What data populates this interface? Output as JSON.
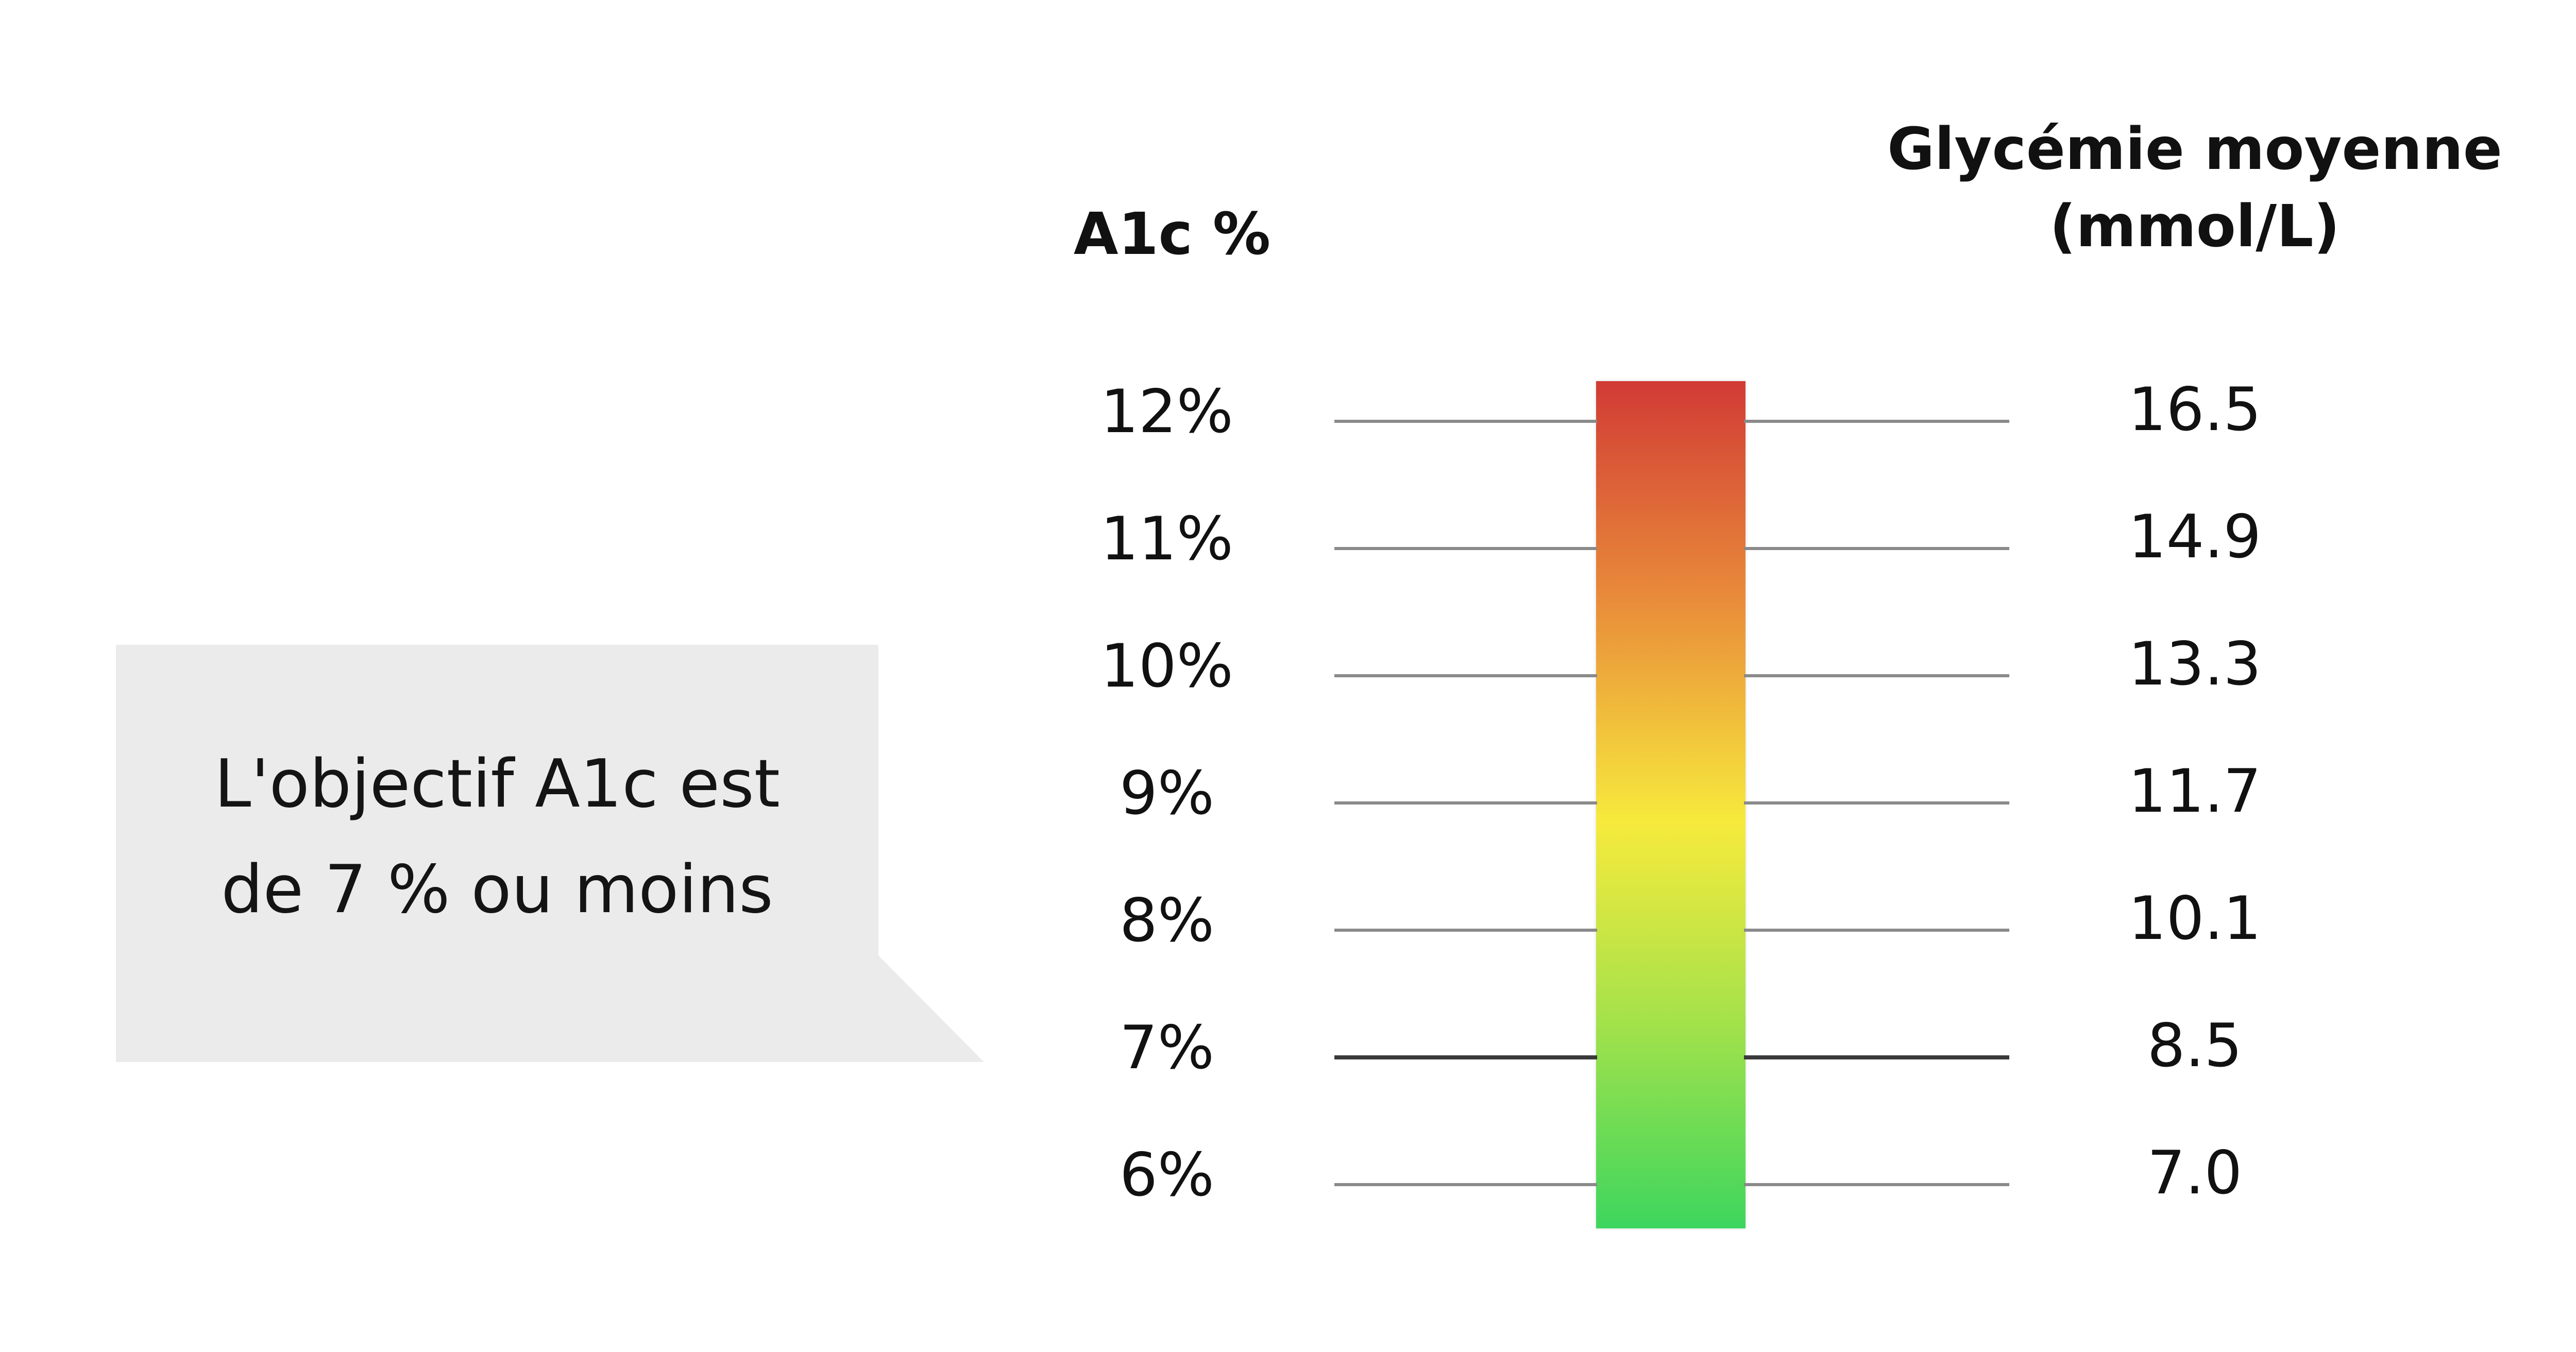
{
  "headings": {
    "a1c": "A1c %",
    "glucose_line1": "Glycémie moyenne",
    "glucose_line2": "(mmol/L)"
  },
  "scale": [
    {
      "a1c": "12%",
      "glucose": "16.5"
    },
    {
      "a1c": "11%",
      "glucose": "14.9"
    },
    {
      "a1c": "10%",
      "glucose": "13.3"
    },
    {
      "a1c": "9%",
      "glucose": "11.7"
    },
    {
      "a1c": "8%",
      "glucose": "10.1"
    },
    {
      "a1c": "7%",
      "glucose": "8.5"
    },
    {
      "a1c": "6%",
      "glucose": "7.0"
    }
  ],
  "target_a1c": "7%",
  "callout": {
    "line1": "L'objectif A1c est",
    "line2": "de 7 % ou moins"
  },
  "colors": {
    "bar_top": "#d13b35",
    "bar_orange": "#e8893a",
    "bar_yellow": "#f7ea3c",
    "bar_lightgreen": "#a6e24a",
    "bar_bottom": "#3dd65e",
    "callout_bg": "#ebebeb",
    "tick_line": "#8a8a8a",
    "target_line": "#3a3a3a"
  }
}
